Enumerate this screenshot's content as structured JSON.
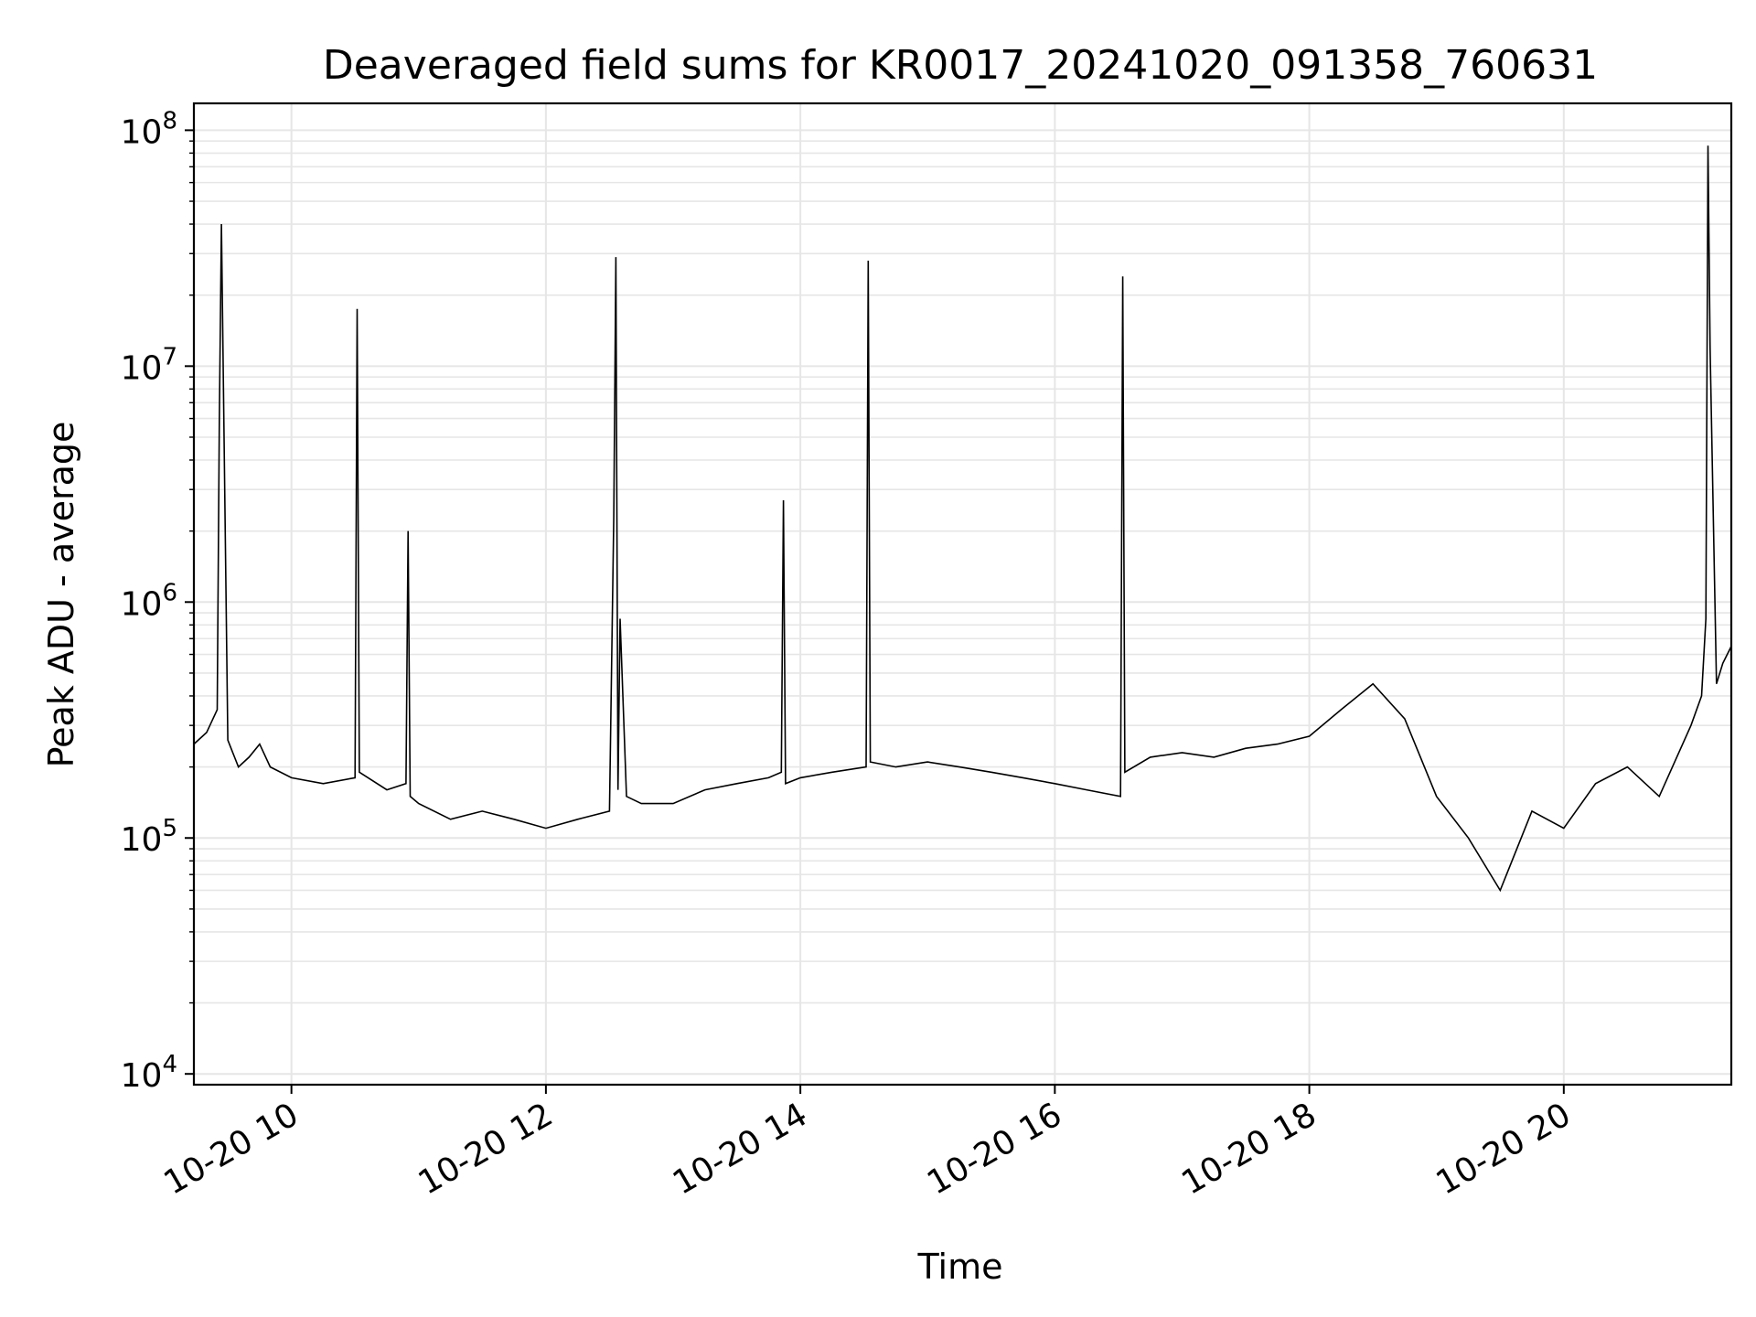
{
  "chart_data": {
    "type": "line",
    "title": "Deaveraged field sums for KR0017_20241020_091358_760631",
    "xlabel": "Time",
    "ylabel": "Peak ADU - average",
    "xlim": [
      "2024-10-20T09:14",
      "2024-10-20T21:19"
    ],
    "ylim": [
      9000,
      130000000
    ],
    "yscale": "log",
    "grid": true,
    "line_color": "#000000",
    "grid_color": "#e6e6e6",
    "x_tick_labels": [
      {
        "t": "2024-10-20T10:00",
        "label": "10-20 10"
      },
      {
        "t": "2024-10-20T12:00",
        "label": "10-20 12"
      },
      {
        "t": "2024-10-20T14:00",
        "label": "10-20 14"
      },
      {
        "t": "2024-10-20T16:00",
        "label": "10-20 16"
      },
      {
        "t": "2024-10-20T18:00",
        "label": "10-20 18"
      },
      {
        "t": "2024-10-20T20:00",
        "label": "10-20 20"
      }
    ],
    "y_ticks": [
      {
        "value": 10000,
        "base": "10",
        "exp": "4"
      },
      {
        "value": 100000,
        "base": "10",
        "exp": "5"
      },
      {
        "value": 1000000,
        "base": "10",
        "exp": "6"
      },
      {
        "value": 10000000,
        "base": "10",
        "exp": "7"
      },
      {
        "value": 100000000,
        "base": "10",
        "exp": "8"
      }
    ],
    "series": [
      {
        "x": [
          "2024-10-20T09:14",
          "2024-10-20T09:20",
          "2024-10-20T09:25",
          "2024-10-20T09:26",
          "2024-10-20T09:27",
          "2024-10-20T09:30",
          "2024-10-20T09:35",
          "2024-10-20T09:40",
          "2024-10-20T09:45",
          "2024-10-20T09:50",
          "2024-10-20T10:00",
          "2024-10-20T10:15",
          "2024-10-20T10:30",
          "2024-10-20T10:31",
          "2024-10-20T10:32",
          "2024-10-20T10:45",
          "2024-10-20T10:54",
          "2024-10-20T10:55",
          "2024-10-20T10:56",
          "2024-10-20T11:00",
          "2024-10-20T11:15",
          "2024-10-20T11:30",
          "2024-10-20T11:45",
          "2024-10-20T12:00",
          "2024-10-20T12:15",
          "2024-10-20T12:30",
          "2024-10-20T12:32",
          "2024-10-20T12:33",
          "2024-10-20T12:34",
          "2024-10-20T12:35",
          "2024-10-20T12:38",
          "2024-10-20T12:45",
          "2024-10-20T13:00",
          "2024-10-20T13:15",
          "2024-10-20T13:30",
          "2024-10-20T13:45",
          "2024-10-20T13:51",
          "2024-10-20T13:52",
          "2024-10-20T13:53",
          "2024-10-20T14:00",
          "2024-10-20T14:15",
          "2024-10-20T14:31",
          "2024-10-20T14:32",
          "2024-10-20T14:33",
          "2024-10-20T14:45",
          "2024-10-20T15:00",
          "2024-10-20T15:15",
          "2024-10-20T15:30",
          "2024-10-20T15:45",
          "2024-10-20T16:00",
          "2024-10-20T16:15",
          "2024-10-20T16:31",
          "2024-10-20T16:32",
          "2024-10-20T16:33",
          "2024-10-20T16:45",
          "2024-10-20T17:00",
          "2024-10-20T17:15",
          "2024-10-20T17:30",
          "2024-10-20T17:45",
          "2024-10-20T18:00",
          "2024-10-20T18:15",
          "2024-10-20T18:30",
          "2024-10-20T18:45",
          "2024-10-20T19:00",
          "2024-10-20T19:15",
          "2024-10-20T19:30",
          "2024-10-20T19:45",
          "2024-10-20T20:00",
          "2024-10-20T20:15",
          "2024-10-20T20:30",
          "2024-10-20T20:45",
          "2024-10-20T21:00",
          "2024-10-20T21:05",
          "2024-10-20T21:07",
          "2024-10-20T21:08",
          "2024-10-20T21:09",
          "2024-10-20T21:12",
          "2024-10-20T21:15",
          "2024-10-20T21:19"
        ],
        "y": [
          250000,
          280000,
          350000,
          5800000,
          40000000,
          260000,
          200000,
          220000,
          250000,
          200000,
          180000,
          170000,
          180000,
          17500000,
          190000,
          160000,
          170000,
          2000000,
          150000,
          140000,
          120000,
          130000,
          120000,
          110000,
          120000,
          130000,
          2300000,
          29000000,
          160000,
          850000,
          150000,
          140000,
          140000,
          160000,
          170000,
          180000,
          190000,
          2700000,
          170000,
          180000,
          190000,
          200000,
          28000000,
          210000,
          200000,
          210000,
          200000,
          190000,
          180000,
          170000,
          160000,
          150000,
          24000000,
          190000,
          220000,
          230000,
          220000,
          240000,
          250000,
          270000,
          350000,
          450000,
          320000,
          150000,
          100000,
          60000,
          130000,
          110000,
          170000,
          200000,
          150000,
          300000,
          400000,
          850000,
          86000000,
          12000000,
          450000,
          550000,
          650000
        ]
      }
    ]
  }
}
